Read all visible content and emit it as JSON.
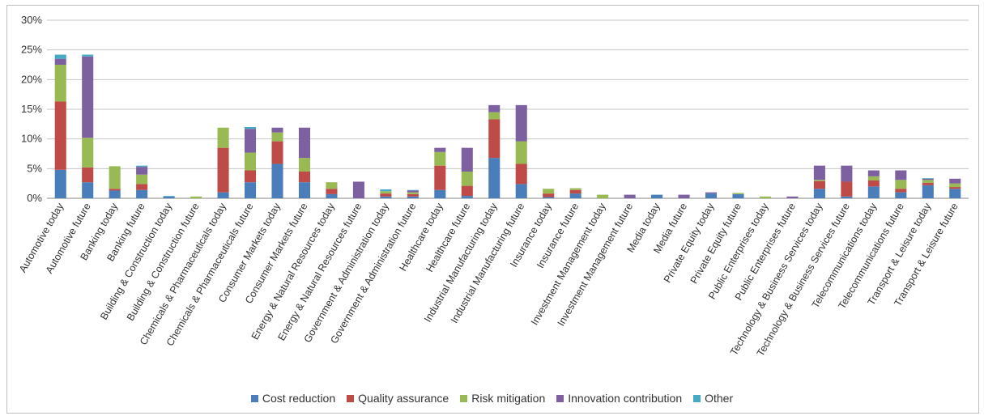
{
  "chart_data": {
    "type": "bar",
    "stacked": true,
    "title": "",
    "xlabel": "",
    "ylabel": "",
    "ylim": [
      0,
      30
    ],
    "y_ticks": [
      "0%",
      "5%",
      "10%",
      "15%",
      "20%",
      "25%",
      "30%"
    ],
    "y_unit": "%",
    "grid": true,
    "legend_position": "bottom",
    "categories": [
      "Automotive today",
      "Automotive future",
      "Banking today",
      "Banking future",
      "Building & Construction today",
      "Building & Construction future",
      "Chemicals & Pharmaceuticals today",
      "Chemicals & Pharmaceuticals future",
      "Consumer Markets today",
      "Consumer Markets future",
      "Energy & Natural Resources today",
      "Energy & Natural Resources future",
      "Government & Administration today",
      "Government & Administration future",
      "Healthcare today",
      "Healthcare future",
      "Industrial Manufacturing today",
      "Industrial Manufacturing future",
      "Insurance today",
      "Insurance future",
      "Investment Management today",
      "Investment Management future",
      "Media today",
      "Media future",
      "Private Equity today",
      "Private Equity future",
      "Public Enterprises today",
      "Public Enterprises future",
      "Technology & Business Services today",
      "Technology & Business Services future",
      "Telecommunications today",
      "Telecommunications future",
      "Transport & Leisure today",
      "Transport & Leisure future"
    ],
    "series": [
      {
        "name": "Cost reduction",
        "color": "#4a7ebb",
        "values": [
          4.8,
          2.7,
          1.3,
          1.4,
          0.3,
          0.0,
          1.0,
          2.7,
          5.8,
          2.7,
          0.7,
          0.0,
          0.3,
          0.3,
          1.4,
          0.4,
          6.8,
          2.4,
          0.2,
          0.8,
          0.0,
          0.0,
          0.6,
          0.0,
          0.8,
          0.7,
          0.0,
          0.0,
          1.6,
          0.3,
          2.0,
          1.0,
          2.2,
          1.6
        ]
      },
      {
        "name": "Quality assurance",
        "color": "#be4b48",
        "values": [
          11.5,
          2.5,
          0.3,
          1.0,
          0.0,
          0.0,
          7.5,
          2.0,
          3.8,
          1.8,
          0.9,
          0.0,
          0.5,
          0.4,
          4.1,
          1.7,
          6.5,
          3.4,
          0.6,
          0.6,
          0.0,
          0.0,
          0.0,
          0.0,
          0.0,
          0.0,
          0.0,
          0.0,
          1.3,
          2.5,
          1.0,
          0.6,
          0.4,
          0.3
        ]
      },
      {
        "name": "Risk mitigation",
        "color": "#98b954",
        "values": [
          6.2,
          5.0,
          3.8,
          1.6,
          0.0,
          0.3,
          3.4,
          3.0,
          1.5,
          2.3,
          1.1,
          0.0,
          0.4,
          0.3,
          2.3,
          2.4,
          1.2,
          3.8,
          0.8,
          0.3,
          0.6,
          0.0,
          0.0,
          0.0,
          0.0,
          0.2,
          0.3,
          0.0,
          0.2,
          0.0,
          0.7,
          1.5,
          0.5,
          0.6
        ]
      },
      {
        "name": "Innovation contribution",
        "color": "#7d60a0",
        "values": [
          1.0,
          13.7,
          0.0,
          1.3,
          0.0,
          0.0,
          0.0,
          4.0,
          0.8,
          5.1,
          0.0,
          2.8,
          0.0,
          0.3,
          0.7,
          4.0,
          1.2,
          6.1,
          0.0,
          0.0,
          0.0,
          0.6,
          0.0,
          0.6,
          0.2,
          0.0,
          0.0,
          0.3,
          2.4,
          2.7,
          1.0,
          1.6,
          0.2,
          0.8
        ]
      },
      {
        "name": "Other",
        "color": "#46aac5",
        "values": [
          0.7,
          0.3,
          0.0,
          0.2,
          0.1,
          0.0,
          0.0,
          0.3,
          0.0,
          0.0,
          0.0,
          0.0,
          0.3,
          0.1,
          0.0,
          0.0,
          0.0,
          0.0,
          0.0,
          0.0,
          0.0,
          0.0,
          0.0,
          0.0,
          0.0,
          0.0,
          0.0,
          0.0,
          0.0,
          0.0,
          0.0,
          0.0,
          0.1,
          0.0
        ]
      }
    ]
  }
}
